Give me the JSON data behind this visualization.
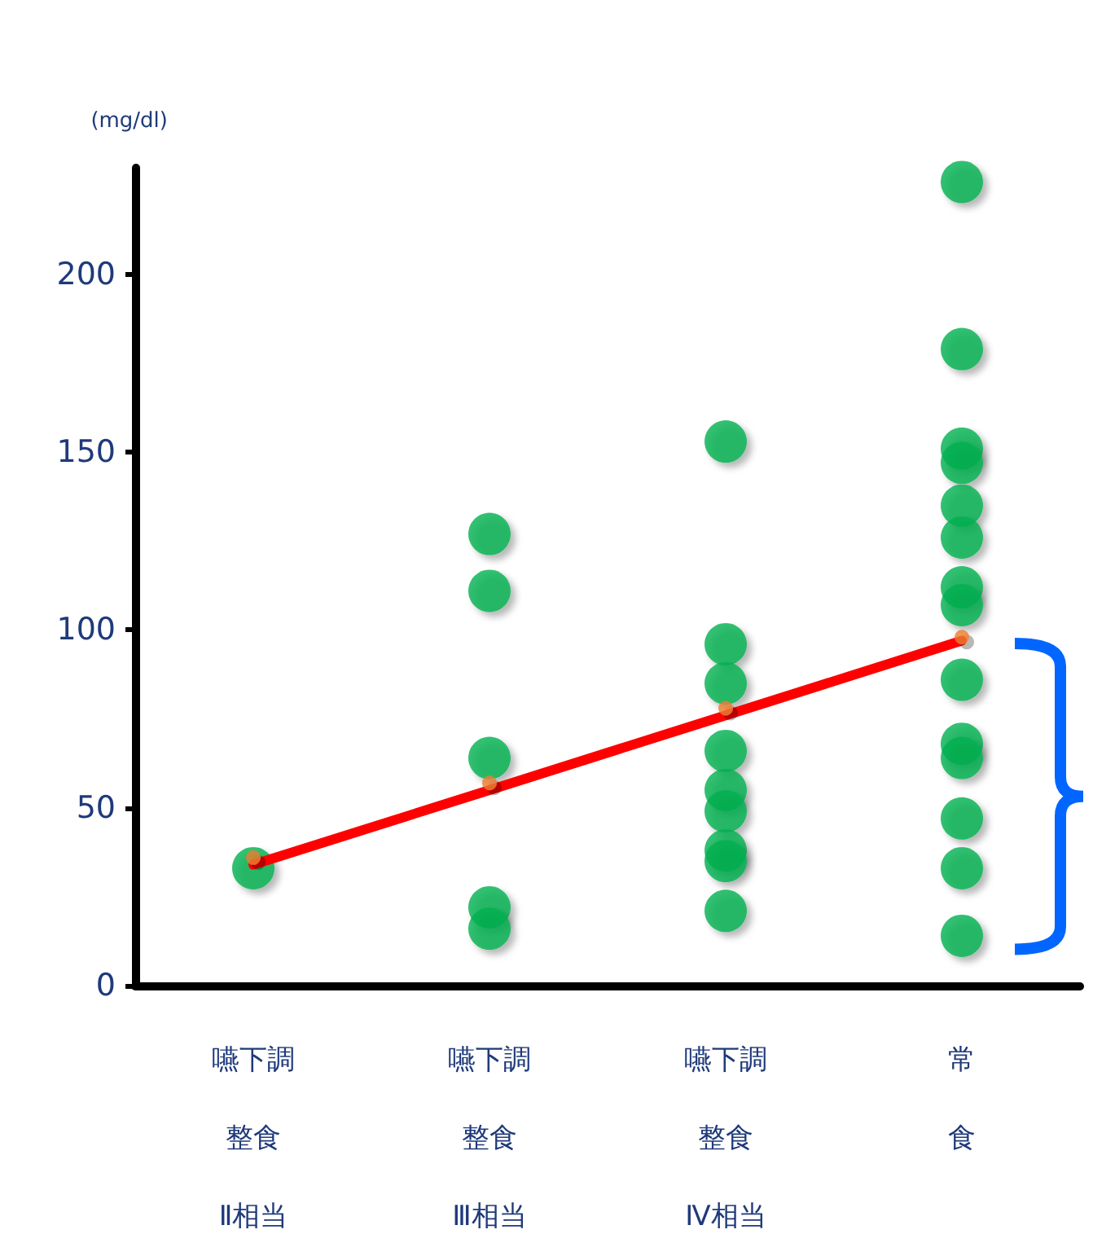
{
  "chart_data": {
    "type": "scatter",
    "ylabel": "(mg/dl)",
    "categories": [
      "嚥下調整食Ⅱ相当",
      "嚥下調整食Ⅲ相当",
      "嚥下調整食Ⅳ相当",
      "常食"
    ],
    "ylim": [
      0,
      230
    ],
    "yticks": [
      0,
      50,
      100,
      150,
      200
    ],
    "grid": false,
    "series": [
      {
        "color": "#00b050",
        "marker": "circle",
        "x": [
          "嚥下調整食Ⅱ相当",
          "嚥下調整食Ⅲ相当",
          "嚥下調整食Ⅲ相当",
          "嚥下調整食Ⅲ相当",
          "嚥下調整食Ⅲ相当",
          "嚥下調整食Ⅲ相当",
          "嚥下調整食Ⅳ相当",
          "嚥下調整食Ⅳ相当",
          "嚥下調整食Ⅳ相当",
          "嚥下調整食Ⅳ相当",
          "嚥下調整食Ⅳ相当",
          "嚥下調整食Ⅳ相当",
          "嚥下調整食Ⅳ相当",
          "嚥下調整食Ⅳ相当",
          "嚥下調整食Ⅳ相当",
          "常食",
          "常食",
          "常食",
          "常食",
          "常食",
          "常食",
          "常食",
          "常食",
          "常食",
          "常食",
          "常食",
          "常食",
          "常食",
          "常食"
        ],
        "values": [
          33,
          127,
          111,
          64,
          22,
          16,
          153,
          96,
          85,
          66,
          55,
          49,
          38,
          35,
          21,
          226,
          179,
          151,
          147,
          135,
          126,
          112,
          107,
          86,
          68,
          64,
          47,
          33,
          14
        ]
      },
      {
        "type": "line",
        "color": "#ff0000",
        "marker": "none",
        "values": [
          34,
          55,
          76,
          97
        ]
      },
      {
        "type": "scatter",
        "color": "#ed7d31",
        "marker": "circle",
        "values": [
          36,
          57,
          78,
          98
        ]
      }
    ]
  }
}
